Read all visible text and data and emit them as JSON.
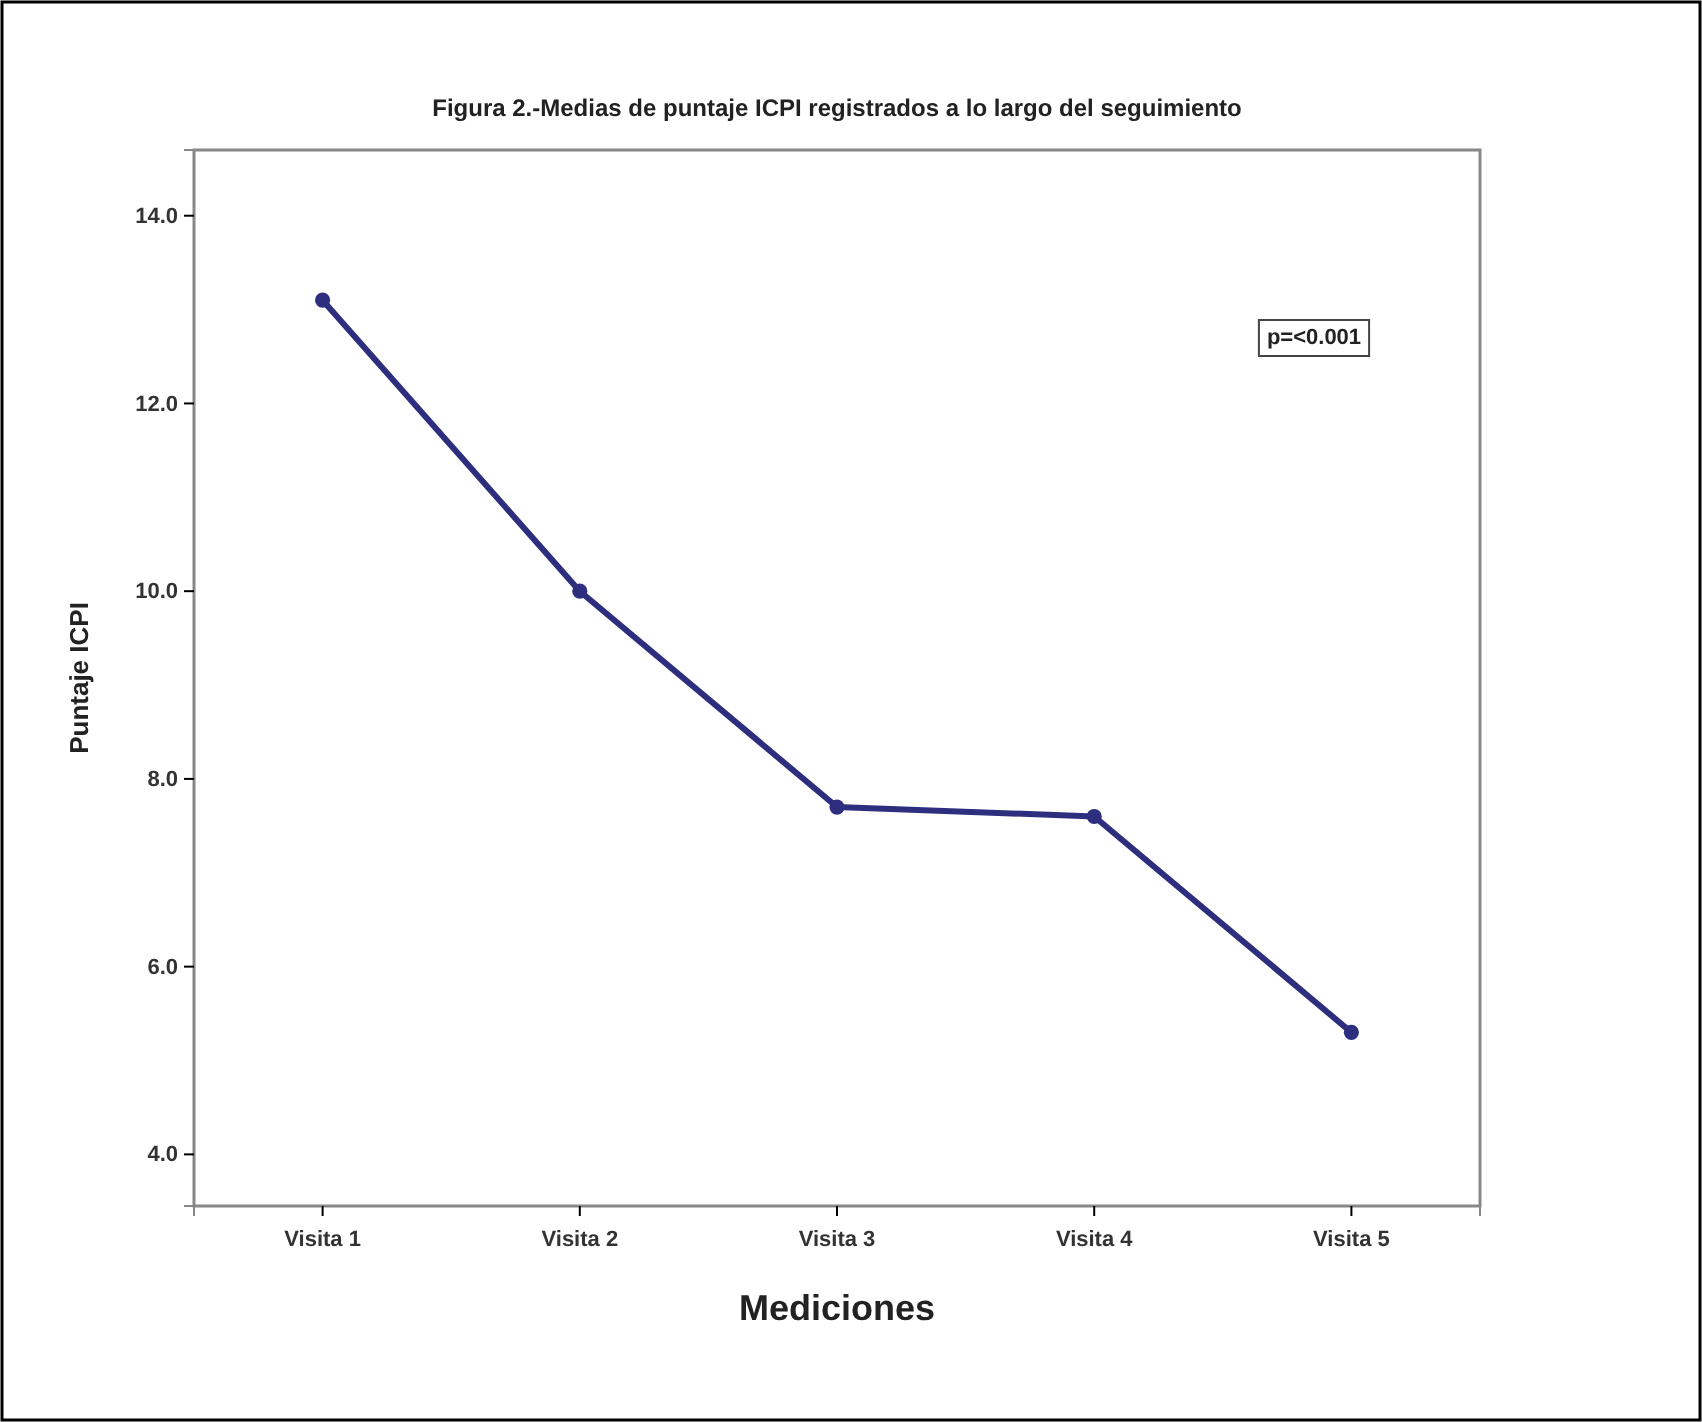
{
  "chart_data": {
    "type": "line",
    "title": "Figura 2.-Medias de puntaje ICPI registrados a lo largo del seguimiento",
    "xlabel": "Mediciones",
    "ylabel": "Puntaje ICPI",
    "categories": [
      "Visita 1",
      "Visita 2",
      "Visita 3",
      "Visita 4",
      "Visita 5"
    ],
    "series": [
      {
        "color": "#2e2e7e",
        "values": [
          13.1,
          10.0,
          7.7,
          7.6,
          5.3
        ]
      }
    ],
    "ylim": [
      3.45,
      14.7
    ],
    "yticks": [
      {
        "value": 4,
        "label": "4.0"
      },
      {
        "value": 6,
        "label": "6.0"
      },
      {
        "value": 8,
        "label": "8.0"
      },
      {
        "value": 10,
        "label": "10.0"
      },
      {
        "value": 12,
        "label": "12.0"
      },
      {
        "value": 14,
        "label": "14.0"
      }
    ],
    "annotations": [
      "p=<0.001"
    ],
    "marker": "circle",
    "line_style": "solid",
    "grid": false
  }
}
